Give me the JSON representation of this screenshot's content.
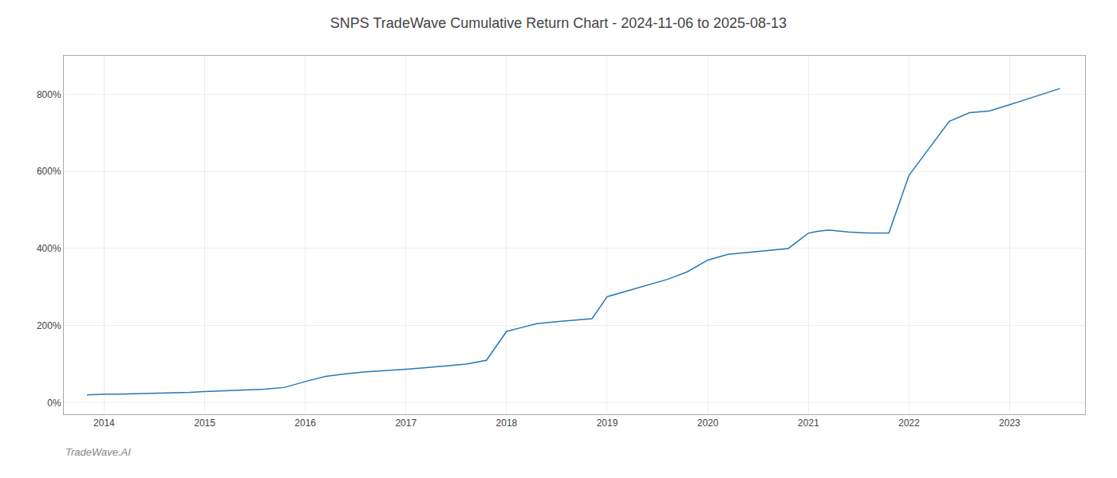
{
  "chart_data": {
    "type": "line",
    "title": "SNPS TradeWave Cumulative Return Chart - 2024-11-06 to 2025-08-13",
    "annotations": [
      "TradeWave.AI"
    ],
    "color": "#2878b5",
    "grid": true,
    "x": [
      2013.83,
      2014.0,
      2014.15,
      2014.3,
      2014.5,
      2014.7,
      2014.85,
      2015.0,
      2015.2,
      2015.4,
      2015.6,
      2015.8,
      2016.0,
      2016.2,
      2016.4,
      2016.6,
      2016.8,
      2017.0,
      2017.2,
      2017.4,
      2017.6,
      2017.8,
      2018.0,
      2018.15,
      2018.3,
      2018.5,
      2018.7,
      2018.85,
      2019.0,
      2019.2,
      2019.4,
      2019.6,
      2019.8,
      2020.0,
      2020.2,
      2020.4,
      2020.6,
      2020.8,
      2021.0,
      2021.1,
      2021.2,
      2021.4,
      2021.6,
      2021.8,
      2022.0,
      2022.2,
      2022.4,
      2022.6,
      2022.8,
      2023.0,
      2023.2,
      2023.5
    ],
    "values": [
      20,
      22,
      22,
      23,
      24,
      25,
      27,
      29,
      31,
      33,
      35,
      40,
      55,
      68,
      75,
      80,
      83,
      87,
      91,
      95,
      100,
      110,
      185,
      195,
      205,
      210,
      215,
      218,
      275,
      290,
      305,
      320,
      340,
      370,
      385,
      390,
      395,
      400,
      440,
      445,
      448,
      443,
      440,
      440,
      590,
      660,
      730,
      752,
      757,
      773,
      790,
      815
    ],
    "xlim": [
      2013.6,
      2023.75
    ],
    "xticks": [
      2014,
      2015,
      2016,
      2017,
      2018,
      2019,
      2020,
      2021,
      2022,
      2023
    ],
    "ylim": [
      -30,
      900
    ],
    "yticks": [
      {
        "value": 0,
        "label": "0%"
      },
      {
        "value": 200,
        "label": "200%"
      },
      {
        "value": 400,
        "label": "400%"
      },
      {
        "value": 600,
        "label": "600%"
      },
      {
        "value": 800,
        "label": "800%"
      }
    ]
  }
}
